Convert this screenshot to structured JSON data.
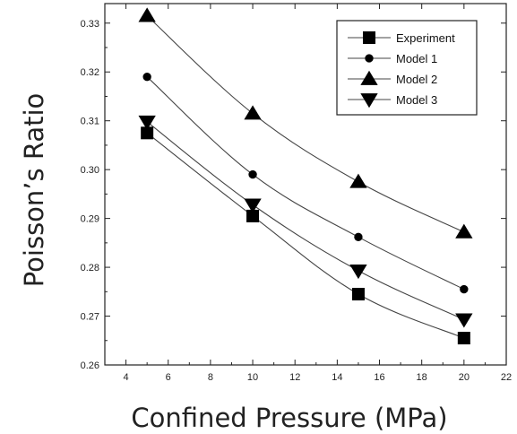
{
  "chart_data": {
    "type": "line",
    "xlabel": "Confined Pressure (MPa)",
    "ylabel": "Poisson’s Ratio",
    "xlim": [
      3,
      22
    ],
    "ylim": [
      0.26,
      0.334
    ],
    "x_ticks": [
      4,
      6,
      8,
      10,
      12,
      14,
      16,
      18,
      20,
      22
    ],
    "y_ticks": [
      0.26,
      0.27,
      0.28,
      0.29,
      0.3,
      0.31,
      0.32,
      0.33
    ],
    "x_tick_labels": [
      "4",
      "6",
      "8",
      "10",
      "12",
      "14",
      "16",
      "18",
      "20",
      "22"
    ],
    "y_tick_labels": [
      "0.26",
      "0.27",
      "0.28",
      "0.29",
      "0.30",
      "0.31",
      "0.32",
      "0.33"
    ],
    "legend_position": "top-right",
    "grid": false,
    "series": [
      {
        "name": "Experiment",
        "marker": "square",
        "x": [
          5,
          10,
          15,
          20
        ],
        "y": [
          0.3075,
          0.2905,
          0.2745,
          0.2655
        ]
      },
      {
        "name": "Model 1",
        "marker": "circle",
        "x": [
          5,
          10,
          15,
          20
        ],
        "y": [
          0.319,
          0.299,
          0.2862,
          0.2755
        ]
      },
      {
        "name": "Model 2",
        "marker": "triangle-up",
        "x": [
          5,
          10,
          15,
          20
        ],
        "y": [
          0.3315,
          0.3115,
          0.2975,
          0.2872
        ]
      },
      {
        "name": "Model 3",
        "marker": "triangle-down",
        "x": [
          5,
          10,
          15,
          20
        ],
        "y": [
          0.3098,
          0.2928,
          0.2793,
          0.2693
        ]
      }
    ]
  }
}
